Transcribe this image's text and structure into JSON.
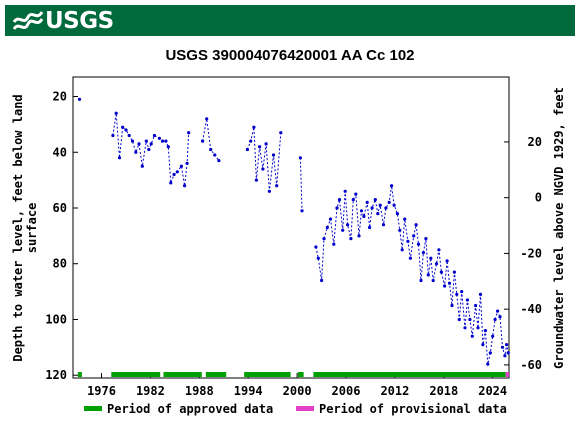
{
  "header": {
    "logo_text": "USGS",
    "banner_color": "#006a3d"
  },
  "chart_data": {
    "type": "scatter",
    "title": "USGS 390004076420001 AA Cc 102",
    "ylabel": "Depth to water level, feet below land surface",
    "y2label": "Groundwater level above NGVD 1929, feet",
    "xlim": [
      1972.5,
      2026
    ],
    "ylim": [
      121,
      13
    ],
    "y2lim": [
      -64.7,
      43.3
    ],
    "y2_offset": -56.3,
    "xticks": [
      1976,
      1982,
      1988,
      1994,
      2000,
      2006,
      2012,
      2018,
      2024
    ],
    "yticks": [
      20,
      40,
      60,
      80,
      100,
      120
    ],
    "y2ticks": [
      20,
      0,
      -20,
      -40,
      -60
    ],
    "series_color": "#0000cc",
    "approved_color": "#00a000",
    "provisional_color": "#e040c8",
    "series": [
      {
        "segments": [
          [
            [
              1973.3,
              21
            ]
          ],
          [
            [
              1977.4,
              34
            ],
            [
              1977.8,
              26
            ],
            [
              1978.2,
              42
            ],
            [
              1978.6,
              31
            ],
            [
              1979.0,
              32
            ],
            [
              1979.4,
              34
            ],
            [
              1979.8,
              36
            ],
            [
              1980.2,
              40
            ],
            [
              1980.6,
              37
            ],
            [
              1981.0,
              45
            ],
            [
              1981.5,
              36
            ],
            [
              1981.8,
              39
            ],
            [
              1982.1,
              37
            ],
            [
              1982.5,
              34
            ],
            [
              1983.1,
              35
            ],
            [
              1983.5,
              36
            ],
            [
              1983.9,
              36
            ],
            [
              1984.2,
              38
            ],
            [
              1984.5,
              51
            ],
            [
              1984.9,
              48
            ],
            [
              1985.3,
              47
            ],
            [
              1985.8,
              45
            ],
            [
              1986.2,
              52
            ],
            [
              1986.5,
              44
            ],
            [
              1986.7,
              33
            ]
          ],
          [
            [
              1988.4,
              36
            ],
            [
              1988.9,
              28
            ],
            [
              1989.4,
              39
            ],
            [
              1989.9,
              41
            ],
            [
              1990.4,
              43
            ]
          ],
          [
            [
              1993.9,
              39
            ],
            [
              1994.3,
              36
            ],
            [
              1994.7,
              31
            ],
            [
              1995.0,
              50
            ],
            [
              1995.4,
              38
            ],
            [
              1995.8,
              46
            ],
            [
              1996.2,
              37
            ],
            [
              1996.6,
              54
            ],
            [
              1997.1,
              41
            ],
            [
              1997.5,
              52
            ],
            [
              1998.0,
              33
            ]
          ],
          [
            [
              2000.4,
              42
            ],
            [
              2000.6,
              61
            ]
          ],
          [
            [
              2002.3,
              74
            ],
            [
              2002.6,
              78
            ],
            [
              2003.0,
              86
            ],
            [
              2003.3,
              71
            ],
            [
              2003.7,
              67
            ],
            [
              2004.1,
              64
            ],
            [
              2004.5,
              73
            ],
            [
              2004.9,
              60
            ],
            [
              2005.2,
              57
            ],
            [
              2005.6,
              68
            ],
            [
              2005.9,
              54
            ],
            [
              2006.2,
              66
            ],
            [
              2006.6,
              71
            ],
            [
              2006.9,
              57
            ],
            [
              2007.2,
              55
            ],
            [
              2007.6,
              70
            ],
            [
              2007.9,
              61
            ],
            [
              2008.2,
              63
            ],
            [
              2008.6,
              58
            ],
            [
              2008.9,
              67
            ],
            [
              2009.2,
              60
            ],
            [
              2009.6,
              57
            ],
            [
              2009.9,
              62
            ],
            [
              2010.2,
              59
            ],
            [
              2010.6,
              66
            ],
            [
              2010.9,
              60
            ],
            [
              2011.3,
              58
            ],
            [
              2011.6,
              52
            ],
            [
              2011.9,
              59
            ],
            [
              2012.3,
              62
            ],
            [
              2012.6,
              68
            ],
            [
              2012.9,
              75
            ],
            [
              2013.2,
              64
            ],
            [
              2013.6,
              72
            ],
            [
              2013.9,
              78
            ],
            [
              2014.3,
              70
            ],
            [
              2014.6,
              66
            ],
            [
              2014.9,
              73
            ],
            [
              2015.2,
              86
            ],
            [
              2015.5,
              76
            ],
            [
              2015.8,
              71
            ],
            [
              2016.1,
              84
            ],
            [
              2016.4,
              78
            ],
            [
              2016.7,
              86
            ],
            [
              2017.1,
              80
            ],
            [
              2017.4,
              75
            ],
            [
              2017.7,
              83
            ],
            [
              2018.1,
              88
            ],
            [
              2018.4,
              79
            ],
            [
              2018.7,
              87
            ],
            [
              2019.0,
              95
            ],
            [
              2019.3,
              83
            ],
            [
              2019.6,
              91
            ],
            [
              2019.9,
              100
            ],
            [
              2020.2,
              90
            ],
            [
              2020.6,
              103
            ],
            [
              2020.9,
              93
            ],
            [
              2021.2,
              100
            ],
            [
              2021.5,
              106
            ],
            [
              2021.9,
              95
            ],
            [
              2022.2,
              103
            ],
            [
              2022.5,
              91
            ],
            [
              2022.8,
              109
            ],
            [
              2023.1,
              104
            ],
            [
              2023.4,
              116
            ],
            [
              2023.7,
              112
            ],
            [
              2024.0,
              106
            ],
            [
              2024.3,
              100
            ],
            [
              2024.6,
              97
            ],
            [
              2024.9,
              99
            ],
            [
              2025.2,
              110
            ],
            [
              2025.5,
              113
            ],
            [
              2025.7,
              109
            ],
            [
              2025.9,
              112
            ]
          ]
        ]
      }
    ],
    "approved_periods": [
      [
        1977.2,
        1983.2
      ],
      [
        1983.6,
        1988.3
      ],
      [
        1988.8,
        1991.3
      ],
      [
        1993.5,
        1999.2
      ],
      [
        2000.1,
        2000.8
      ],
      [
        2002.0,
        2025.6
      ]
    ],
    "provisional_periods": [
      [
        2025.6,
        2026.0
      ]
    ],
    "legend": {
      "position": "bottom",
      "items": [
        {
          "label": "Period of approved data",
          "color": "#00a000"
        },
        {
          "label": "Period of provisional data",
          "color": "#e040c8"
        }
      ]
    }
  }
}
